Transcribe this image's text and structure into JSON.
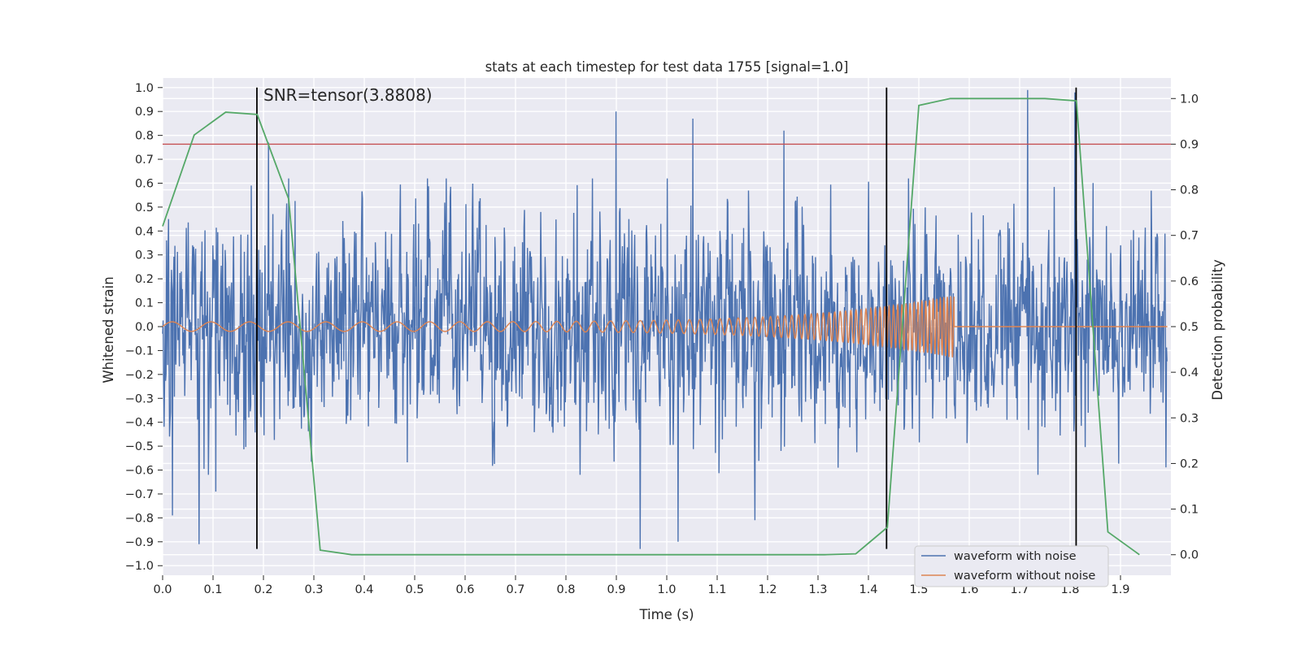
{
  "chart_data": {
    "type": "line",
    "title": "stats at each timestep for test data 1755 [signal=1.0]",
    "xlabel": "Time (s)",
    "ylabel": "Whitened strain",
    "y2label": "Detection probability",
    "xlim": [
      0.0,
      2.0
    ],
    "ylim": [
      -1.04,
      1.04
    ],
    "y2lim": [
      -0.045,
      1.045
    ],
    "xticks": [
      "0.0",
      "0.1",
      "0.2",
      "0.3",
      "0.4",
      "0.5",
      "0.6",
      "0.7",
      "0.8",
      "0.9",
      "1.0",
      "1.1",
      "1.2",
      "1.3",
      "1.4",
      "1.5",
      "1.6",
      "1.7",
      "1.8",
      "1.9"
    ],
    "yticks": [
      "1.0",
      "0.9",
      "0.8",
      "0.7",
      "0.6",
      "0.5",
      "0.4",
      "0.3",
      "0.2",
      "0.1",
      "0.0",
      "−0.1",
      "−0.2",
      "−0.3",
      "−0.4",
      "−0.5",
      "−0.6",
      "−0.7",
      "−0.8",
      "−0.9",
      "−1.0"
    ],
    "y2ticks": [
      "1.0",
      "0.9",
      "0.8",
      "0.7",
      "0.6",
      "0.5",
      "0.4",
      "0.3",
      "0.2",
      "0.1",
      "0.0"
    ],
    "grid": true,
    "legend_position": "bottom-right",
    "annotation": "SNR=tensor(3.8808)",
    "threshold": {
      "axis": "y2",
      "value": 0.9,
      "color": "#c44e52"
    },
    "vertical_lines": {
      "x": [
        0.187,
        1.436,
        1.812
      ],
      "y_range": [
        -0.93,
        1.0
      ],
      "color": "#000000"
    },
    "series": [
      {
        "name": "waveform with noise",
        "axis": "y",
        "color": "#4c72b0",
        "generated": true,
        "peaks": [
          {
            "x": 0.072,
            "y": -0.91
          },
          {
            "x": 0.176,
            "y": 0.59
          },
          {
            "x": 0.21,
            "y": 0.77
          },
          {
            "x": 0.23,
            "y": 0.26
          },
          {
            "x": 0.899,
            "y": 0.9
          },
          {
            "x": 0.947,
            "y": -0.93
          },
          {
            "x": 1.052,
            "y": 0.87
          },
          {
            "x": 1.022,
            "y": -0.9
          },
          {
            "x": 1.232,
            "y": 0.82
          },
          {
            "x": 1.716,
            "y": 0.99
          },
          {
            "x": 1.81,
            "y": 0.98
          },
          {
            "x": 1.175,
            "y": -0.81
          },
          {
            "x": 0.02,
            "y": -0.79
          },
          {
            "x": 0.105,
            "y": -0.69
          }
        ]
      },
      {
        "name": "waveform without noise",
        "axis": "y",
        "color": "#dd8452",
        "generated": true,
        "chirp": {
          "start": 0.0,
          "end": 1.57,
          "amplitude_start": 0.02,
          "amplitude_end": 0.13
        }
      },
      {
        "name": "",
        "axis": "y2",
        "color": "#55a868",
        "x": [
          0.0,
          0.0625,
          0.125,
          0.1875,
          0.25,
          0.3125,
          0.375,
          0.4375,
          0.5,
          0.5625,
          0.625,
          0.6875,
          0.75,
          0.8125,
          0.875,
          0.9375,
          1.0,
          1.0625,
          1.125,
          1.1875,
          1.25,
          1.3125,
          1.375,
          1.4375,
          1.5,
          1.5625,
          1.625,
          1.6875,
          1.75,
          1.8125,
          1.875,
          1.9375
        ],
        "y": [
          0.72,
          0.92,
          0.97,
          0.965,
          0.78,
          0.01,
          0.0,
          0.0,
          0.0,
          0.0,
          0.0,
          0.0,
          0.0,
          0.0,
          0.0,
          0.0,
          0.0,
          0.0,
          0.0,
          0.0,
          0.0,
          0.0,
          0.002,
          0.06,
          0.985,
          1.0,
          1.0,
          1.0,
          1.0,
          0.995,
          0.05,
          0.0
        ]
      }
    ]
  }
}
